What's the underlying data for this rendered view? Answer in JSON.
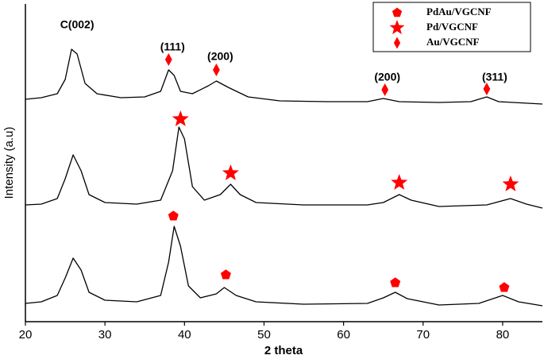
{
  "chart_data": {
    "type": "line",
    "x_label": "2 theta",
    "y_label": "Intensity (a.u)",
    "xlim": [
      20,
      85
    ],
    "xticks": [
      20,
      30,
      40,
      50,
      60,
      70,
      80
    ],
    "ylim": [
      0,
      100
    ],
    "series": [
      {
        "name": "PdAu/VGCNF",
        "color": "#000000",
        "marker": "pentagon",
        "marker_color": "#ff0000",
        "x": [
          20,
          22,
          24,
          25,
          26,
          27,
          28,
          30,
          34,
          37,
          38,
          38.7,
          39.5,
          40.5,
          42,
          44,
          45,
          46.5,
          49,
          55,
          63,
          65,
          66.5,
          68,
          72,
          77,
          80,
          82,
          85
        ],
        "values": [
          5.75,
          6.25,
          8.25,
          13.75,
          20,
          16.25,
          9.25,
          6.75,
          6.25,
          8.25,
          18.75,
          30,
          23.75,
          11.25,
          7.5,
          8.75,
          10.75,
          8.25,
          6.25,
          5.5,
          5.75,
          7.5,
          9.25,
          7.25,
          5.25,
          5.75,
          8.25,
          6.25,
          5
        ],
        "peaks_x": [
          38.6,
          45.2,
          66.5,
          80.2
        ],
        "peaks_y": [
          33.25,
          14.75,
          12.25,
          10.75
        ]
      },
      {
        "name": "Pd/VGCNF",
        "color": "#000000",
        "marker": "star",
        "marker_color": "#ff0000",
        "x": [
          20,
          22,
          24,
          25,
          26,
          27,
          28,
          30,
          34,
          37,
          38.5,
          39.3,
          40,
          41,
          42.5,
          44.5,
          45.8,
          47,
          49,
          55,
          63,
          65,
          67,
          68.5,
          72,
          78,
          81,
          83,
          85
        ],
        "values": [
          36.75,
          37,
          38.75,
          45,
          52.5,
          47.5,
          40,
          37.5,
          37,
          38.25,
          47.5,
          61.25,
          57.5,
          42.5,
          38.25,
          40,
          43.25,
          40,
          37.5,
          36.75,
          36.75,
          37.5,
          40,
          38.25,
          36.25,
          36.75,
          38.75,
          37,
          35.75
        ],
        "peaks_x": [
          39.5,
          45.8,
          67,
          81
        ],
        "peaks_y": [
          63.75,
          46.75,
          43.75,
          43.25
        ]
      },
      {
        "name": "Au/VGCNF",
        "color": "#000000",
        "marker": "diamond",
        "marker_color": "#ff0000",
        "x": [
          20,
          22,
          24,
          25,
          25.8,
          26.5,
          27.5,
          29,
          32,
          35,
          37,
          38,
          38.7,
          39.5,
          41,
          43,
          44,
          45.5,
          48,
          52,
          58,
          63,
          65,
          67,
          72,
          76,
          78,
          79.5,
          85
        ],
        "values": [
          70,
          70.5,
          71.75,
          76.25,
          85.75,
          84.25,
          75,
          71.75,
          70.5,
          70.75,
          72.5,
          79.25,
          77.5,
          72.5,
          71.75,
          74.25,
          75.75,
          73.75,
          70.75,
          69.5,
          69.25,
          69.25,
          70.25,
          69.25,
          69,
          69.25,
          70.75,
          69.25,
          68.5
        ],
        "peaks_x": [
          38,
          44,
          65.2,
          78
        ],
        "peaks_y": [
          82.5,
          79.25,
          73,
          73.25
        ]
      }
    ],
    "annotations": [
      {
        "text": "C(002)",
        "x": 26.5,
        "y": 93.25
      },
      {
        "text": "(111)",
        "x": 38.5,
        "y": 86.25
      },
      {
        "text": "(200)",
        "x": 44.5,
        "y": 83.25
      },
      {
        "text": "(200)",
        "x": 65.5,
        "y": 76.75
      },
      {
        "text": "(311)",
        "x": 79,
        "y": 76.75
      }
    ]
  }
}
